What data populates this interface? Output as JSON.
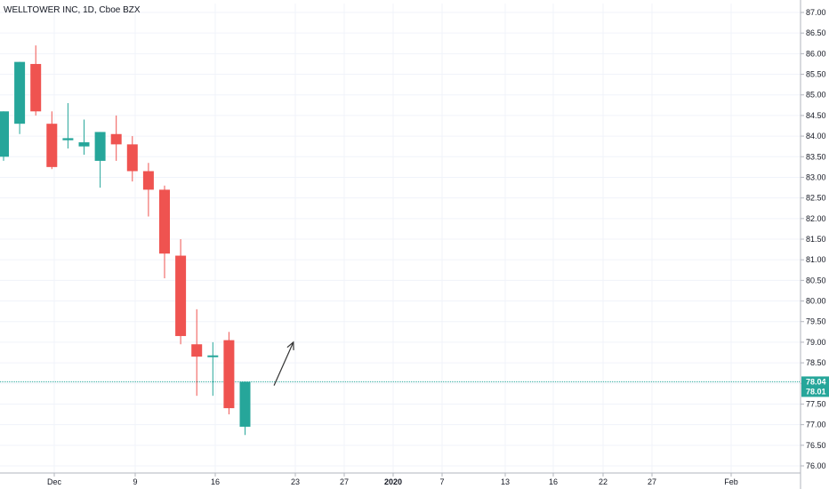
{
  "chart_data": {
    "type": "candlestick",
    "title": "WELLTOWER INC, 1D, Cboe BZX",
    "y_ticks": [
      "87.00",
      "86.50",
      "86.00",
      "85.50",
      "85.00",
      "84.50",
      "84.00",
      "83.50",
      "83.00",
      "82.50",
      "82.00",
      "81.50",
      "81.00",
      "80.50",
      "80.00",
      "79.50",
      "79.00",
      "78.50",
      "78.00",
      "77.50",
      "77.00",
      "76.50",
      "76.00"
    ],
    "ylim": [
      75.8,
      87.2
    ],
    "x_ticks": [
      {
        "label": "Dec",
        "bold": false
      },
      {
        "label": "9",
        "bold": false
      },
      {
        "label": "16",
        "bold": false
      },
      {
        "label": "23",
        "bold": false
      },
      {
        "label": "27",
        "bold": false
      },
      {
        "label": "2020",
        "bold": true
      },
      {
        "label": "7",
        "bold": false
      },
      {
        "label": "13",
        "bold": false
      },
      {
        "label": "16",
        "bold": false
      },
      {
        "label": "22",
        "bold": false
      },
      {
        "label": "27",
        "bold": false
      },
      {
        "label": "Feb",
        "bold": false
      }
    ],
    "candles": [
      {
        "open": 83.5,
        "high": 84.6,
        "low": 83.4,
        "close": 84.6
      },
      {
        "open": 84.3,
        "high": 85.8,
        "low": 84.05,
        "close": 85.8
      },
      {
        "open": 85.75,
        "high": 86.2,
        "low": 84.5,
        "close": 84.6
      },
      {
        "open": 84.3,
        "high": 84.6,
        "low": 83.2,
        "close": 83.25
      },
      {
        "open": 83.9,
        "high": 84.8,
        "low": 83.7,
        "close": 83.95
      },
      {
        "open": 83.75,
        "high": 84.4,
        "low": 83.55,
        "close": 83.85
      },
      {
        "open": 83.4,
        "high": 84.1,
        "low": 82.75,
        "close": 84.1
      },
      {
        "open": 84.05,
        "high": 84.5,
        "low": 83.4,
        "close": 83.8
      },
      {
        "open": 83.8,
        "high": 84.0,
        "low": 82.9,
        "close": 83.15
      },
      {
        "open": 83.15,
        "high": 83.35,
        "low": 82.05,
        "close": 82.7
      },
      {
        "open": 82.7,
        "high": 82.8,
        "low": 80.55,
        "close": 81.15
      },
      {
        "open": 81.1,
        "high": 81.5,
        "low": 78.95,
        "close": 79.15
      },
      {
        "open": 78.95,
        "high": 79.8,
        "low": 77.7,
        "close": 78.65
      },
      {
        "open": 78.65,
        "high": 79.0,
        "low": 77.7,
        "close": 78.68
      },
      {
        "open": 79.05,
        "high": 79.25,
        "low": 77.25,
        "close": 77.4
      },
      {
        "open": 76.95,
        "high": 78.04,
        "low": 76.75,
        "close": 78.04
      }
    ],
    "current_price": {
      "value": 78.04,
      "label": "78.04"
    },
    "secondary_price": {
      "value": 78.01,
      "label": "78.01"
    },
    "annotation": {
      "type": "arrow",
      "direction": "up",
      "from": {
        "bar": 16.8,
        "price": 77.95
      },
      "to": {
        "bar": 18.0,
        "price": 79.0
      }
    },
    "grid": true
  },
  "colors": {
    "up": "#26a69a",
    "down": "#ef5350",
    "grid": "#f0f3fa",
    "axis": "#b2b5be",
    "price_line": "#26a69a",
    "arrow": "#333333",
    "secondary_tag": "#9598a1"
  }
}
